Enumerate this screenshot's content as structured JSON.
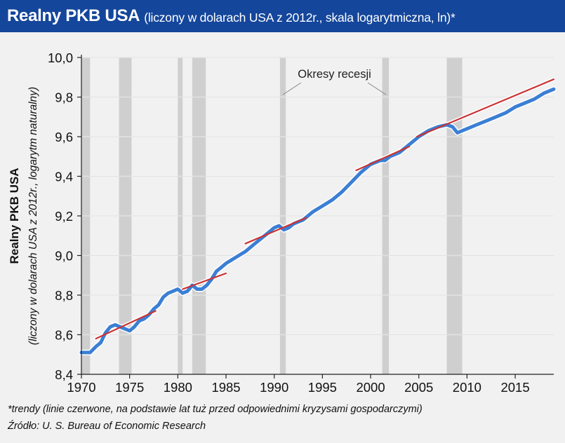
{
  "header": {
    "title_main": "Realny PKB USA",
    "title_sub": "(liczony w dolarach USA z 2012r., skala logarytmiczna, ln)*"
  },
  "footer": {
    "footnote": "*trendy (linie czerwone, na podstawie lat tuż przed odpowiednimi kryzysami gospodarczymi)",
    "source": "Źródło: U. S. Bureau of Economic Research"
  },
  "chart_data": {
    "type": "line",
    "title": "",
    "ylabel": "Realny PKB USA",
    "ylabel_sub": "(liczony w dolarach USA z 2012r., logarytm naturalny)",
    "xlabel": "",
    "xlim": [
      1970,
      2019
    ],
    "ylim": [
      8.4,
      10.0
    ],
    "x_ticks": [
      1970,
      1975,
      1980,
      1985,
      1990,
      1995,
      2000,
      2005,
      2010,
      2015
    ],
    "y_ticks": [
      8.4,
      8.6,
      8.8,
      9.0,
      9.2,
      9.4,
      9.6,
      9.8,
      10.0
    ],
    "y_tick_labels": [
      "8,4",
      "8,6",
      "8,8",
      "9,0",
      "9,2",
      "9,4",
      "9,6",
      "9,8",
      "10,0"
    ],
    "grid": "horizontal",
    "colors": {
      "series": "#3b7fd4",
      "trend": "#cc3333",
      "recession": "#c9c9c9",
      "title_bar": "#14469b"
    },
    "recession_label": "Okresy recesji",
    "recessions": [
      [
        1970.0,
        1970.9
      ],
      [
        1973.9,
        1975.2
      ],
      [
        1980.0,
        1980.5
      ],
      [
        1981.5,
        1982.9
      ],
      [
        1990.6,
        1991.2
      ],
      [
        2001.2,
        2001.9
      ],
      [
        2007.9,
        2009.5
      ]
    ],
    "series": [
      {
        "name": "Realny PKB USA (ln)",
        "points": [
          [
            1970.0,
            8.51
          ],
          [
            1970.5,
            8.51
          ],
          [
            1970.9,
            8.51
          ],
          [
            1971.5,
            8.54
          ],
          [
            1972.0,
            8.56
          ],
          [
            1972.5,
            8.61
          ],
          [
            1973.0,
            8.64
          ],
          [
            1973.5,
            8.65
          ],
          [
            1974.0,
            8.64
          ],
          [
            1974.5,
            8.63
          ],
          [
            1975.0,
            8.62
          ],
          [
            1975.5,
            8.64
          ],
          [
            1976.0,
            8.67
          ],
          [
            1976.5,
            8.68
          ],
          [
            1977.0,
            8.7
          ],
          [
            1977.5,
            8.73
          ],
          [
            1978.0,
            8.75
          ],
          [
            1978.5,
            8.79
          ],
          [
            1979.0,
            8.81
          ],
          [
            1979.5,
            8.82
          ],
          [
            1980.0,
            8.83
          ],
          [
            1980.5,
            8.81
          ],
          [
            1981.0,
            8.82
          ],
          [
            1981.5,
            8.85
          ],
          [
            1982.0,
            8.83
          ],
          [
            1982.5,
            8.83
          ],
          [
            1983.0,
            8.85
          ],
          [
            1983.5,
            8.88
          ],
          [
            1984.0,
            8.92
          ],
          [
            1984.5,
            8.94
          ],
          [
            1985.0,
            8.96
          ],
          [
            1986.0,
            8.99
          ],
          [
            1987.0,
            9.02
          ],
          [
            1988.0,
            9.06
          ],
          [
            1989.0,
            9.1
          ],
          [
            1990.0,
            9.14
          ],
          [
            1990.5,
            9.15
          ],
          [
            1991.0,
            9.13
          ],
          [
            1991.5,
            9.14
          ],
          [
            1992.0,
            9.16
          ],
          [
            1993.0,
            9.18
          ],
          [
            1994.0,
            9.22
          ],
          [
            1995.0,
            9.25
          ],
          [
            1996.0,
            9.28
          ],
          [
            1997.0,
            9.32
          ],
          [
            1998.0,
            9.37
          ],
          [
            1999.0,
            9.42
          ],
          [
            2000.0,
            9.46
          ],
          [
            2001.0,
            9.48
          ],
          [
            2001.5,
            9.48
          ],
          [
            2002.0,
            9.5
          ],
          [
            2003.0,
            9.52
          ],
          [
            2004.0,
            9.56
          ],
          [
            2005.0,
            9.6
          ],
          [
            2006.0,
            9.63
          ],
          [
            2007.0,
            9.65
          ],
          [
            2007.9,
            9.66
          ],
          [
            2008.5,
            9.65
          ],
          [
            2009.0,
            9.62
          ],
          [
            2009.5,
            9.63
          ],
          [
            2010.0,
            9.64
          ],
          [
            2011.0,
            9.66
          ],
          [
            2012.0,
            9.68
          ],
          [
            2013.0,
            9.7
          ],
          [
            2014.0,
            9.72
          ],
          [
            2015.0,
            9.75
          ],
          [
            2016.0,
            9.77
          ],
          [
            2017.0,
            9.79
          ],
          [
            2018.0,
            9.82
          ],
          [
            2019.0,
            9.84
          ]
        ]
      }
    ],
    "trends": [
      [
        [
          1971.5,
          8.58
        ],
        [
          1977.7,
          8.72
        ]
      ],
      [
        [
          1980.5,
          8.83
        ],
        [
          1985.0,
          8.91
        ]
      ],
      [
        [
          1987.0,
          9.06
        ],
        [
          1993.3,
          9.19
        ]
      ],
      [
        [
          1998.5,
          9.43
        ],
        [
          2004.0,
          9.55
        ]
      ],
      [
        [
          2004.8,
          9.6
        ],
        [
          2019.0,
          9.89
        ]
      ]
    ]
  }
}
